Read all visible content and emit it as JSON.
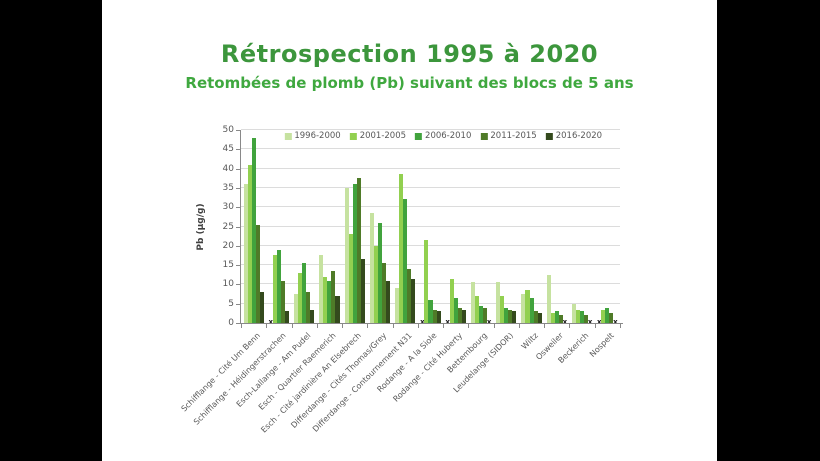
{
  "slide": {
    "title": "Rétrospection 1995 à 2020",
    "subtitle": "Retombées de plomb (Pb) suivant des blocs de 5 ans",
    "title_color": "#3c963c",
    "subtitle_color": "#3fa83f"
  },
  "chart_data": {
    "type": "bar",
    "title": "",
    "xlabel": "",
    "ylabel": "Pb (µg/g)",
    "ylim": [
      0,
      50
    ],
    "ytick_step": 5,
    "grid": true,
    "legend_position": "top",
    "missing_value_marker": "x",
    "categories": [
      "Schifflange - Cité Um Benn",
      "Schifflange - Héidingerstrachen",
      "Esch-Lallange - Am Pudel",
      "Esch - Quartier Raemerich",
      "Esch - Cité jardinière An Elsebrech",
      "Differdange - Cités Thomas/Grey",
      "Differdange - Contournement N31",
      "Rodange - A la Siole",
      "Rodange - Cité Huberty",
      "Bettembourg",
      "Leudelange (SIDOR)",
      "Wiltz",
      "Osweiler",
      "Beckerich",
      "Nospelt"
    ],
    "series": [
      {
        "name": "1996-2000",
        "color": "#c6e2a0",
        "values": [
          36,
          null,
          7.5,
          17.5,
          35,
          28.5,
          9,
          null,
          null,
          10.5,
          10.5,
          7.5,
          12.5,
          5,
          null
        ]
      },
      {
        "name": "2001-2005",
        "color": "#92d050",
        "values": [
          41,
          17.5,
          13,
          12,
          23,
          20,
          38.5,
          21.5,
          11.5,
          7,
          7,
          8.5,
          2.5,
          3.5,
          3.5
        ]
      },
      {
        "name": "2006-2010",
        "color": "#41a33d",
        "values": [
          48,
          19,
          15.5,
          11,
          36,
          26,
          32,
          6,
          6.5,
          4.5,
          4,
          6.5,
          3,
          3,
          4
        ]
      },
      {
        "name": "2011-2015",
        "color": "#4f7b28",
        "values": [
          25.5,
          11,
          8,
          13.5,
          37.5,
          15.5,
          14,
          3.5,
          4,
          4,
          3.5,
          3,
          2.2,
          2.2,
          2.5
        ]
      },
      {
        "name": "2016-2020",
        "color": "#344a1d",
        "values": [
          8,
          3,
          3.5,
          7,
          16.5,
          11,
          11.5,
          3,
          3.5,
          null,
          3,
          2.5,
          null,
          null,
          null
        ]
      }
    ]
  }
}
